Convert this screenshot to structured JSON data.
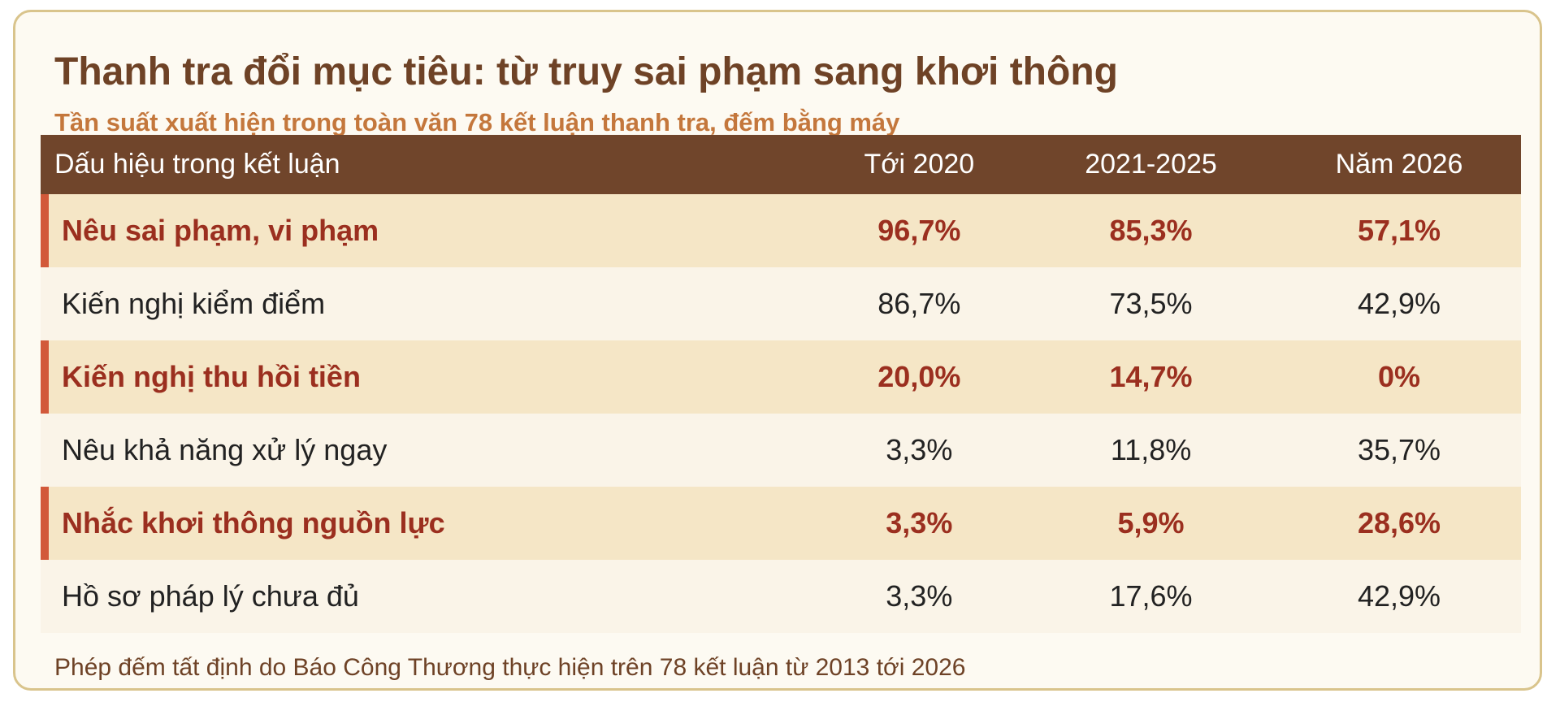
{
  "header": {
    "title": "Thanh tra đổi mục tiêu: từ truy sai phạm sang khơi thông",
    "subtitle": "Tần suất xuất hiện trong toàn văn 78 kết luận thanh tra, đếm bằng máy"
  },
  "table": {
    "columns": [
      "Dấu hiệu trong kết luận",
      "Tới 2020",
      "2021-2025",
      "Năm 2026"
    ],
    "rows": [
      {
        "cells": [
          "Nêu sai phạm, vi phạm",
          "96,7%",
          "85,3%",
          "57,1%"
        ],
        "highlight": true
      },
      {
        "cells": [
          "Kiến nghị kiểm điểm",
          "86,7%",
          "73,5%",
          "42,9%"
        ],
        "highlight": false
      },
      {
        "cells": [
          "Kiến nghị thu hồi tiền",
          "20,0%",
          "14,7%",
          "0%"
        ],
        "highlight": true
      },
      {
        "cells": [
          "Nêu khả năng xử lý ngay",
          "3,3%",
          "11,8%",
          "35,7%"
        ],
        "highlight": false
      },
      {
        "cells": [
          "Nhắc khơi thông nguồn lực",
          "3,3%",
          "5,9%",
          "28,6%"
        ],
        "highlight": true
      },
      {
        "cells": [
          "Hồ sơ pháp lý chưa đủ",
          "3,3%",
          "17,6%",
          "42,9%"
        ],
        "highlight": false
      }
    ]
  },
  "footer": {
    "note": "Phép đếm tất định do Báo Công Thương thực hiện trên 78 kết luận từ 2013 tới 2026"
  }
}
